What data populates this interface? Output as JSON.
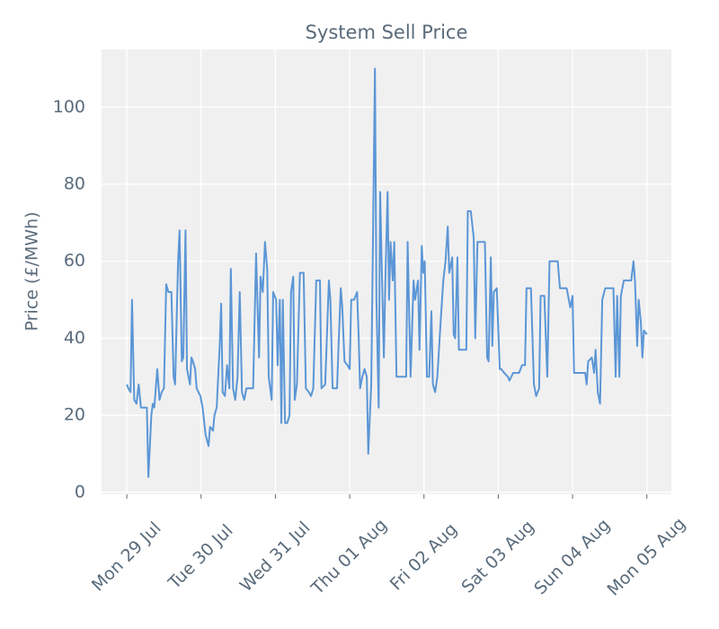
{
  "chart_data": {
    "type": "line",
    "title": "System Sell Price",
    "y_label": "Price (£/MWh)",
    "x": [
      0,
      0.02,
      0.05,
      0.07,
      0.1,
      0.13,
      0.16,
      0.19,
      0.27,
      0.29,
      0.33,
      0.35,
      0.37,
      0.41,
      0.44,
      0.47,
      0.5,
      0.53,
      0.56,
      0.6,
      0.63,
      0.65,
      0.69,
      0.71,
      0.74,
      0.76,
      0.79,
      0.81,
      0.85,
      0.87,
      0.89,
      0.92,
      0.94,
      0.99,
      1.02,
      1.06,
      1.1,
      1.12,
      1.16,
      1.18,
      1.21,
      1.25,
      1.27,
      1.29,
      1.32,
      1.35,
      1.38,
      1.4,
      1.43,
      1.46,
      1.49,
      1.52,
      1.55,
      1.58,
      1.61,
      1.7,
      1.74,
      1.78,
      1.8,
      1.83,
      1.86,
      1.89,
      1.91,
      1.95,
      1.97,
      2.01,
      2.03,
      2.06,
      2.08,
      2.1,
      2.13,
      2.16,
      2.19,
      2.21,
      2.24,
      2.26,
      2.29,
      2.33,
      2.38,
      2.41,
      2.45,
      2.48,
      2.51,
      2.55,
      2.6,
      2.62,
      2.67,
      2.72,
      2.74,
      2.77,
      2.83,
      2.85,
      2.88,
      2.9,
      2.93,
      2.97,
      3.0,
      3.02,
      3.06,
      3.1,
      3.12,
      3.14,
      3.17,
      3.2,
      3.23,
      3.25,
      3.29,
      3.31,
      3.34,
      3.36,
      3.39,
      3.41,
      3.43,
      3.46,
      3.48,
      3.51,
      3.53,
      3.55,
      3.58,
      3.6,
      3.63,
      3.76,
      3.78,
      3.82,
      3.86,
      3.88,
      3.92,
      3.94,
      3.97,
      3.99,
      4.01,
      4.04,
      4.07,
      4.1,
      4.12,
      4.15,
      4.18,
      4.22,
      4.26,
      4.29,
      4.32,
      4.34,
      4.38,
      4.4,
      4.42,
      4.45,
      4.47,
      4.57,
      4.59,
      4.63,
      4.67,
      4.69,
      4.72,
      4.82,
      4.85,
      4.87,
      4.9,
      4.92,
      4.94,
      4.98,
      5.02,
      5.04,
      5.08,
      5.13,
      5.15,
      5.2,
      5.28,
      5.32,
      5.36,
      5.38,
      5.44,
      5.48,
      5.51,
      5.55,
      5.57,
      5.62,
      5.66,
      5.69,
      5.8,
      5.83,
      5.92,
      5.97,
      6.0,
      6.02,
      6.13,
      6.17,
      6.19,
      6.21,
      6.26,
      6.29,
      6.31,
      6.34,
      6.37,
      6.4,
      6.44,
      6.55,
      6.58,
      6.6,
      6.63,
      6.65,
      6.69,
      6.79,
      6.82,
      6.84,
      6.87,
      6.89,
      6.92,
      6.94,
      6.96,
      7.0
    ],
    "series": [
      {
        "name": "System Sell Price",
        "color": "#5b96d6",
        "values": [
          28,
          27,
          26,
          50,
          24,
          23,
          28,
          22,
          22,
          4,
          20,
          23,
          22,
          32,
          24,
          26,
          27,
          54,
          52,
          52,
          30,
          28,
          60,
          68,
          34,
          35,
          68,
          32,
          28,
          35,
          34,
          32,
          27,
          25,
          22,
          15,
          12,
          17,
          16,
          20,
          22,
          38,
          49,
          26,
          25,
          33,
          27,
          58,
          27,
          24,
          30,
          52,
          26,
          24,
          27,
          27,
          62,
          35,
          56,
          52,
          65,
          58,
          30,
          24,
          52,
          50,
          33,
          50,
          18,
          50,
          18,
          18,
          20,
          52,
          56,
          24,
          28,
          57,
          57,
          27,
          26,
          25,
          27,
          55,
          55,
          27,
          28,
          55,
          50,
          27,
          27,
          38,
          53,
          48,
          34,
          33,
          32,
          50,
          50,
          52,
          41,
          27,
          30,
          32,
          30,
          10,
          28,
          60,
          110,
          50,
          22,
          78,
          60,
          35,
          55,
          78,
          50,
          65,
          55,
          65,
          30,
          30,
          65,
          30,
          55,
          50,
          55,
          37,
          64,
          57,
          60,
          30,
          30,
          47,
          28,
          26,
          30,
          43,
          55,
          60,
          69,
          57,
          61,
          41,
          40,
          61,
          37,
          37,
          73,
          73,
          66,
          40,
          65,
          65,
          35,
          34,
          61,
          38,
          52,
          53,
          32,
          32,
          31,
          30,
          29,
          31,
          31,
          33,
          33,
          53,
          53,
          28,
          25,
          27,
          51,
          51,
          30,
          60,
          60,
          53,
          53,
          48,
          51,
          31,
          31,
          31,
          28,
          34,
          35,
          31,
          37,
          26,
          23,
          50,
          53,
          53,
          30,
          51,
          30,
          51,
          55,
          55,
          60,
          55,
          38,
          50,
          44,
          35,
          42,
          41
        ]
      }
    ],
    "xlim": [
      -0.34,
      7.33
    ],
    "xticks": [
      {
        "value": 0,
        "label": "Mon 29 Jul"
      },
      {
        "value": 1,
        "label": "Tue 30 Jul"
      },
      {
        "value": 2,
        "label": "Wed 31 Jul"
      },
      {
        "value": 3,
        "label": "Thu 01 Aug"
      },
      {
        "value": 4,
        "label": "Fri 02 Aug"
      },
      {
        "value": 5,
        "label": "Sat 03 Aug"
      },
      {
        "value": 6,
        "label": "Sun 04 Aug"
      },
      {
        "value": 7,
        "label": "Mon 05 Aug"
      }
    ],
    "ylim": [
      -0.5,
      115
    ],
    "yticks": [
      0,
      20,
      40,
      60,
      80,
      100
    ],
    "grid": true,
    "background": "#f0f0f0"
  }
}
